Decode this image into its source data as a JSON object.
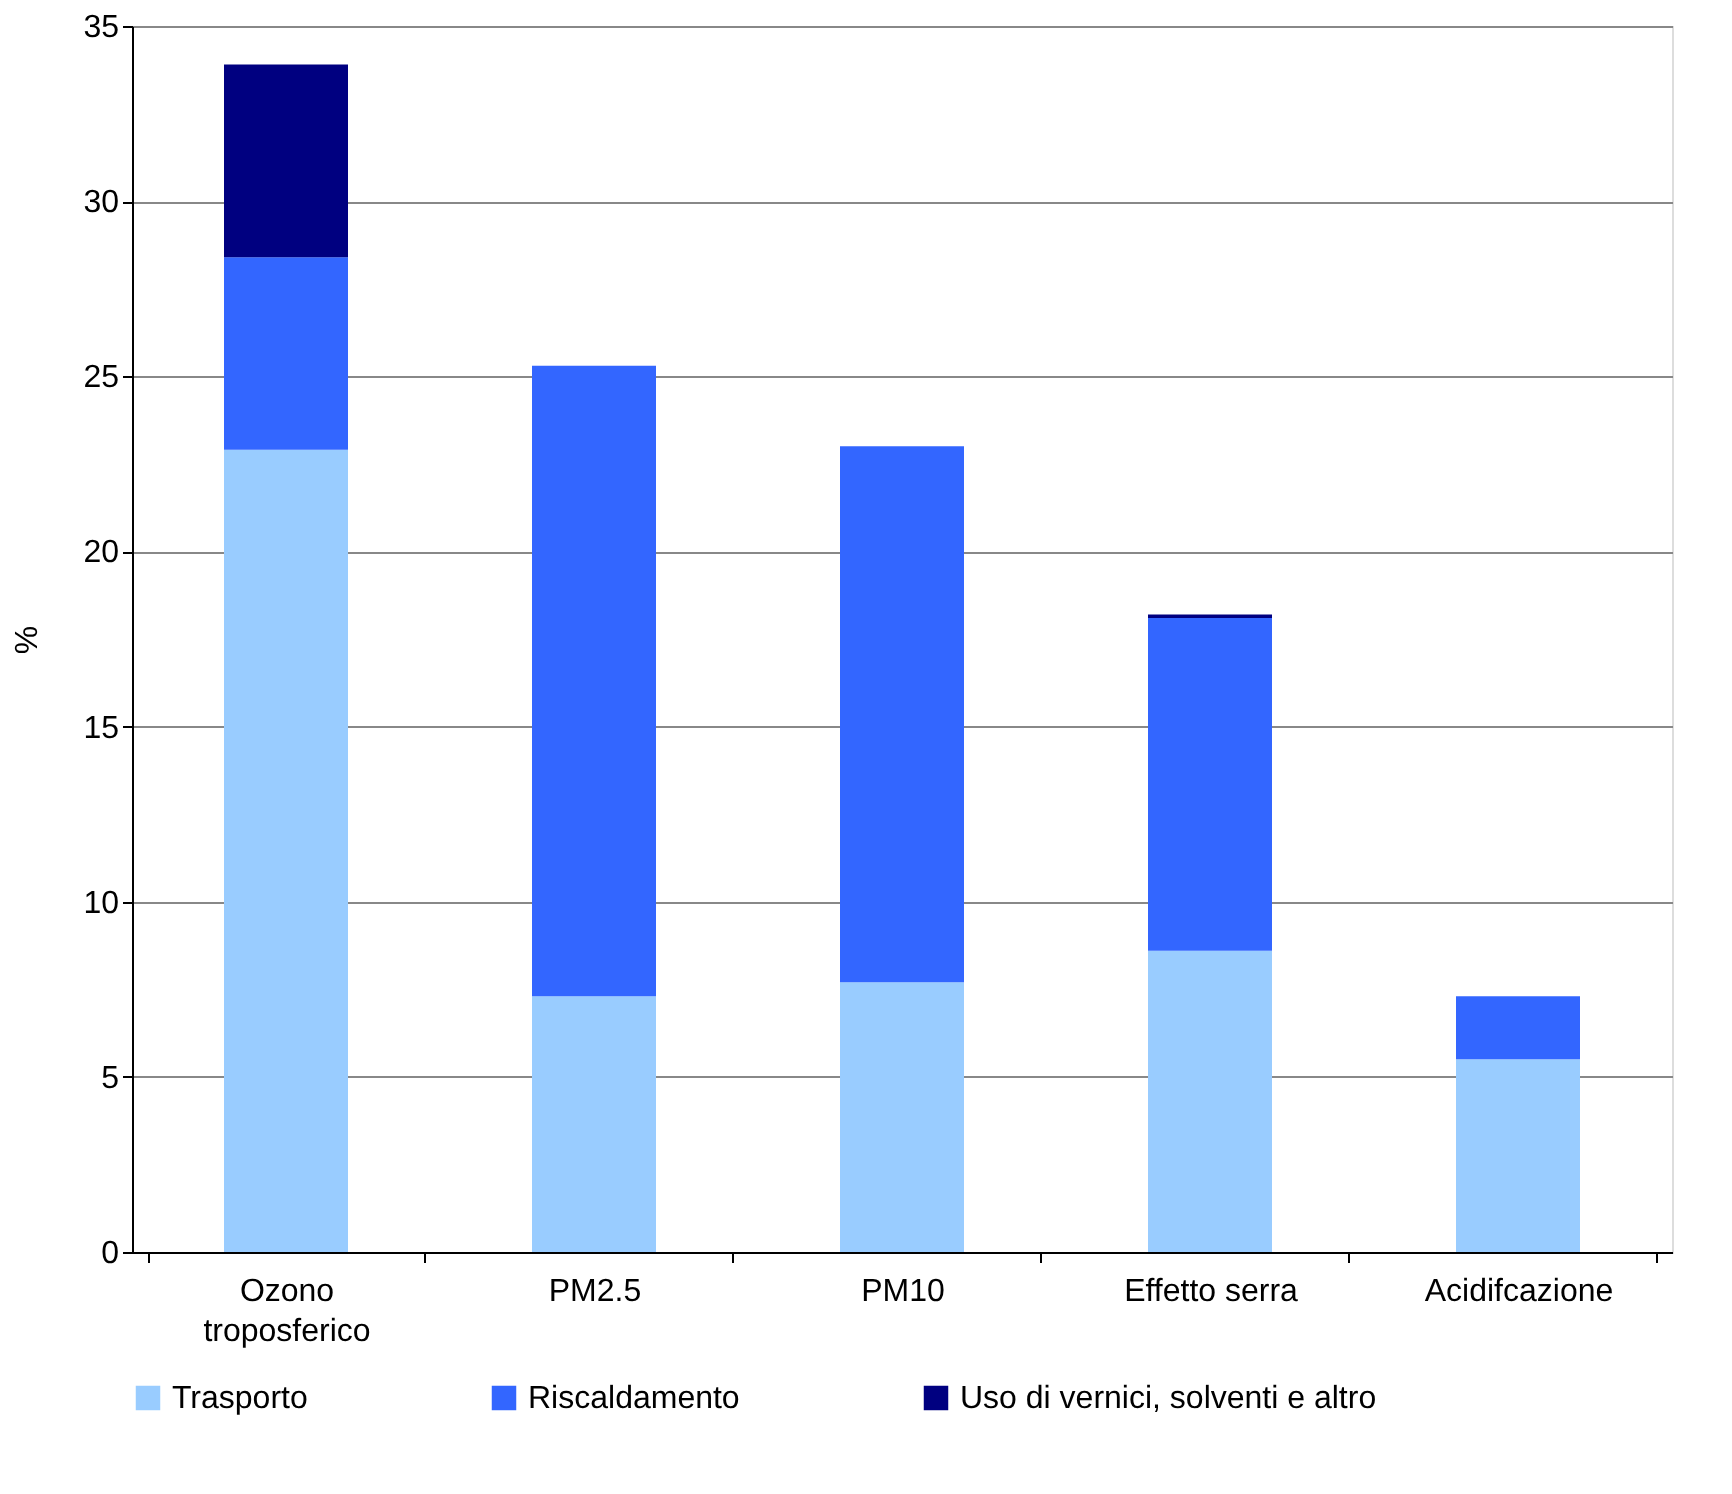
{
  "chart_data": {
    "type": "bar",
    "stacked": true,
    "ylabel": "%",
    "categories": [
      "Ozono troposferico",
      "PM2.5",
      "PM10",
      "Effetto serra",
      "Acidifcazione"
    ],
    "series": [
      {
        "name": "Trasporto",
        "color": "#99ccff",
        "values": [
          22.9,
          7.3,
          7.7,
          8.6,
          5.5
        ]
      },
      {
        "name": "Riscaldamento",
        "color": "#3366ff",
        "values": [
          5.5,
          18.0,
          15.3,
          9.5,
          1.8
        ]
      },
      {
        "name": "Uso di vernici, solventi e altro",
        "color": "#000080",
        "values": [
          5.5,
          0,
          0,
          0.1,
          0
        ]
      }
    ],
    "ylim": [
      0,
      35
    ],
    "yticks": [
      0,
      5,
      10,
      15,
      20,
      25,
      30,
      35
    ],
    "grid": "y",
    "legend": "bottom"
  }
}
